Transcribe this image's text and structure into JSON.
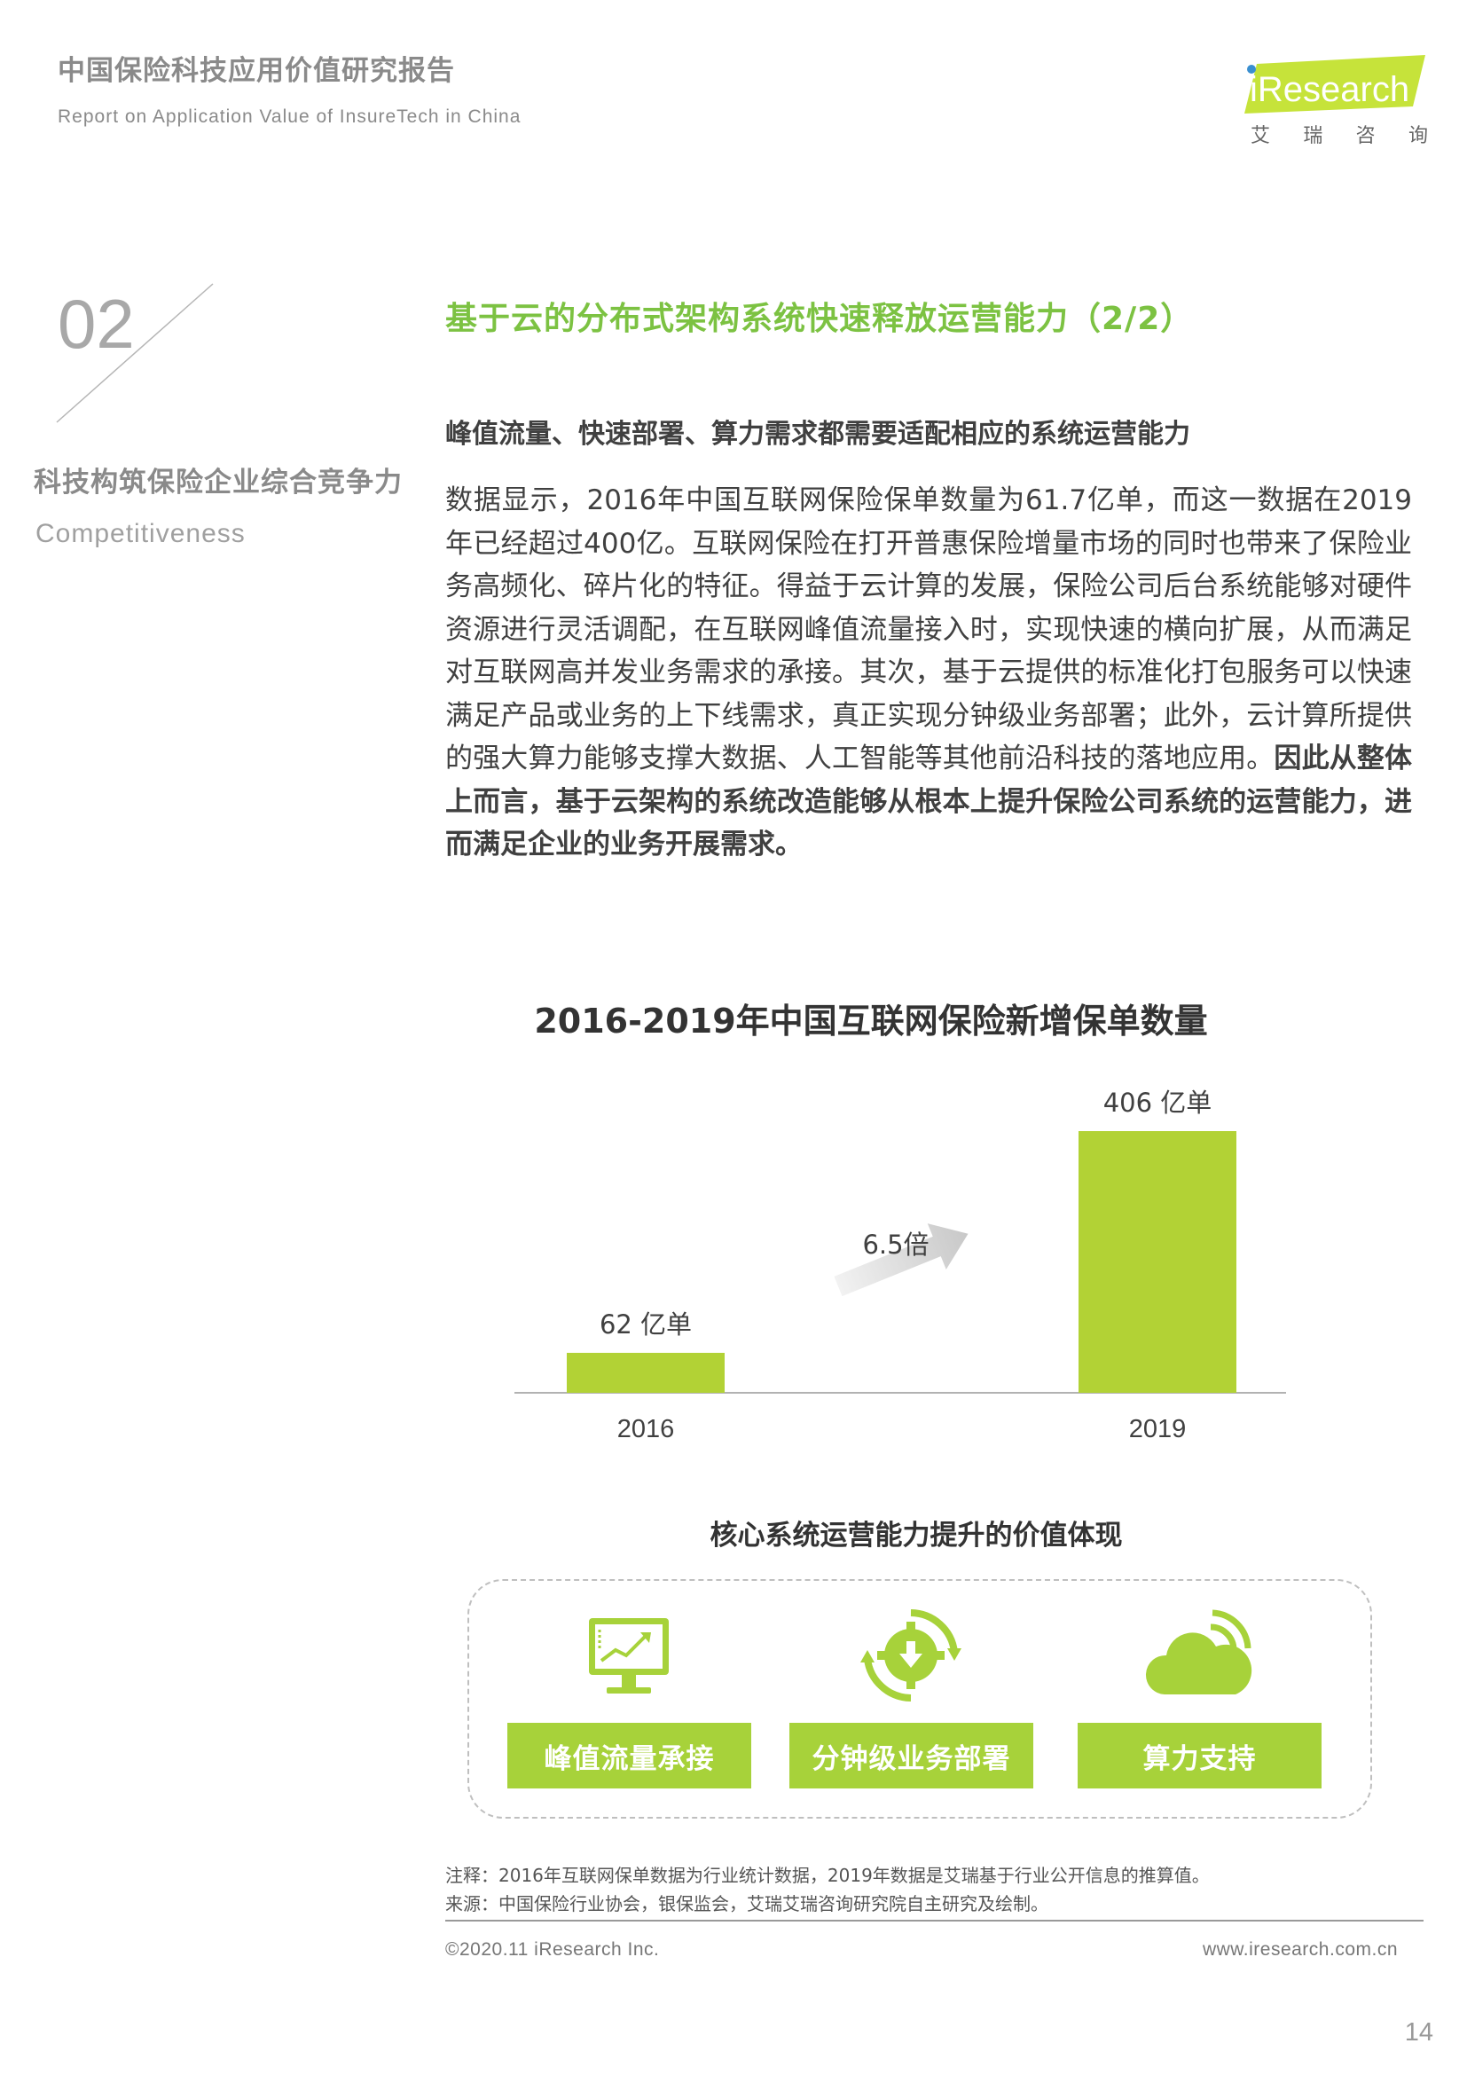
{
  "header": {
    "title": "中国保险科技应用价值研究报告",
    "subtitle": "Report on Application Value of InsureTech in China",
    "logo_text": "iResearch",
    "logo_cn": [
      "艾",
      "瑞",
      "咨",
      "询"
    ]
  },
  "section": {
    "number": "02",
    "title_cn": "科技构筑保险企业综合竞争力",
    "title_en": "Competitiveness"
  },
  "main_title": "基于云的分布式架构系统快速释放运营能力（2/2）",
  "subhead": "峰值流量、快速部署、算力需求都需要适配相应的系统运营能力",
  "body": {
    "normal": "数据显示，2016年中国互联网保险保单数量为61.7亿单，而这一数据在2019年已经超过400亿。互联网保险在打开普惠保险增量市场的同时也带来了保险业务高频化、碎片化的特征。得益于云计算的发展，保险公司后台系统能够对硬件资源进行灵活调配，在互联网峰值流量接入时，实现快速的横向扩展，从而满足对互联网高并发业务需求的承接。其次，基于云提供的标准化打包服务可以快速满足产品或业务的上下线需求，真正实现分钟级业务部署；此外，云计算所提供的强大算力能够支撑大数据、人工智能等其他前沿科技的落地应用。",
    "bold": "因此从整体上而言，基于云架构的系统改造能够从根本上提升保险公司系统的运营能力，进而满足企业的业务开展需求。"
  },
  "chart_data": {
    "type": "bar",
    "title": "2016-2019年中国互联网保险新增保单数量",
    "categories": [
      "2016",
      "2019"
    ],
    "values": [
      62,
      406
    ],
    "value_labels": [
      "62 亿单",
      "406 亿单"
    ],
    "annotation": "6.5倍",
    "bar_color": "#b2d235",
    "ylim": [
      0,
      406
    ],
    "xlabel": "",
    "ylabel": "",
    "grid": false,
    "legend": "none"
  },
  "value_section": {
    "title": "核心系统运营能力提升的价值体现",
    "items": [
      {
        "label": "峰值流量承接",
        "icon": "monitor-chart-icon"
      },
      {
        "label": "分钟级业务部署",
        "icon": "gear-refresh-icon"
      },
      {
        "label": "算力支持",
        "icon": "cloud-signal-icon"
      }
    ],
    "accent": "#a7d23a"
  },
  "notes": {
    "note": "注释：2016年互联网保单数据为行业统计数据，2019年数据是艾瑞基于行业公开信息的推算值。",
    "source": "来源：中国保险行业协会，银保监会，艾瑞艾瑞咨询研究院自主研究及绘制。"
  },
  "footer": {
    "copyright": "©2020.11 iResearch Inc.",
    "website": "www.iresearch.com.cn",
    "page": "14"
  }
}
